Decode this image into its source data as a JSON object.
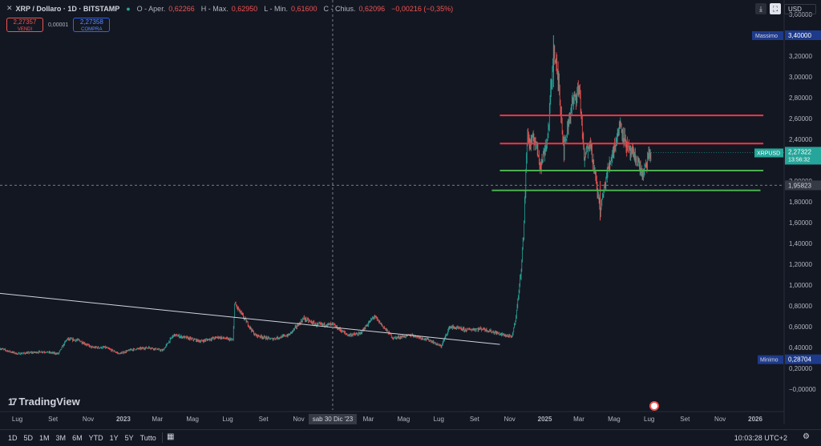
{
  "header": {
    "symbol": "XRP / Dollaro · 1D · BITSTAMP",
    "ohlc": [
      {
        "k": "O - Aper.",
        "v": "0,62266"
      },
      {
        "k": "H - Max.",
        "v": "0,62950"
      },
      {
        "k": "L - Min.",
        "v": "0,61600"
      },
      {
        "k": "C - Chius.",
        "v": "0,62096"
      },
      {
        "k": "",
        "v": "−0,00216 (−0,35%)"
      }
    ],
    "sell_price": "2,27357",
    "sell_label": "VENDI",
    "spread": "0,00001",
    "buy_price": "2,27358",
    "buy_label": "COMPRA",
    "currency": "USD"
  },
  "toolbar": {
    "timeframes": [
      "1D",
      "5D",
      "1M",
      "3M",
      "6M",
      "YTD",
      "1Y",
      "5Y",
      "Tutto"
    ],
    "clock": "10:03:28 UTC+2"
  },
  "brand": {
    "name": "TradingView"
  },
  "chart_data": {
    "type": "line",
    "y_axis": {
      "min": -0.2,
      "max": 3.6,
      "ticks": [
        "3,60000",
        "3,20000",
        "3,00000",
        "2,80000",
        "2,60000",
        "2,40000",
        "2,00000",
        "1,80000",
        "1,60000",
        "1,40000",
        "1,20000",
        "1,00000",
        "0,80000",
        "0,60000",
        "0,40000",
        "0,20000",
        "−0,00000"
      ],
      "tick_values": [
        3.6,
        3.2,
        3.0,
        2.8,
        2.6,
        2.4,
        2.0,
        1.8,
        1.6,
        1.4,
        1.2,
        1.0,
        0.8,
        0.6,
        0.4,
        0.2,
        0.0
      ]
    },
    "x_axis": {
      "start": "2022-06-01",
      "end": "2026-02-20",
      "labels": [
        {
          "d": "2022-07-01",
          "t": "Lug"
        },
        {
          "d": "2022-09-01",
          "t": "Set"
        },
        {
          "d": "2022-11-01",
          "t": "Nov"
        },
        {
          "d": "2023-01-01",
          "t": "2023",
          "bold": true
        },
        {
          "d": "2023-03-01",
          "t": "Mar"
        },
        {
          "d": "2023-05-01",
          "t": "Mag"
        },
        {
          "d": "2023-07-01",
          "t": "Lug"
        },
        {
          "d": "2023-09-01",
          "t": "Set"
        },
        {
          "d": "2023-11-01",
          "t": "Nov"
        },
        {
          "d": "2024-03-01",
          "t": "Mar"
        },
        {
          "d": "2024-05-01",
          "t": "Mag"
        },
        {
          "d": "2024-07-01",
          "t": "Lug"
        },
        {
          "d": "2024-09-01",
          "t": "Set"
        },
        {
          "d": "2024-11-01",
          "t": "Nov"
        },
        {
          "d": "2025-01-01",
          "t": "2025",
          "bold": true
        },
        {
          "d": "2025-03-01",
          "t": "Mar"
        },
        {
          "d": "2025-05-01",
          "t": "Mag"
        },
        {
          "d": "2025-07-01",
          "t": "Lug"
        },
        {
          "d": "2025-09-01",
          "t": "Set"
        },
        {
          "d": "2025-11-01",
          "t": "Nov"
        },
        {
          "d": "2026-01-01",
          "t": "2026",
          "bold": true
        }
      ]
    },
    "series": [
      {
        "name": "XRPUSD",
        "points": [
          [
            "2022-06-01",
            0.39
          ],
          [
            "2022-07-01",
            0.34
          ],
          [
            "2022-08-15",
            0.36
          ],
          [
            "2022-09-10",
            0.34
          ],
          [
            "2022-09-25",
            0.48
          ],
          [
            "2022-10-15",
            0.47
          ],
          [
            "2022-11-08",
            0.4
          ],
          [
            "2022-12-01",
            0.4
          ],
          [
            "2022-12-25",
            0.34
          ],
          [
            "2023-01-15",
            0.38
          ],
          [
            "2023-02-15",
            0.4
          ],
          [
            "2023-03-10",
            0.37
          ],
          [
            "2023-03-29",
            0.52
          ],
          [
            "2023-04-15",
            0.5
          ],
          [
            "2023-05-15",
            0.46
          ],
          [
            "2023-06-15",
            0.5
          ],
          [
            "2023-07-10",
            0.47
          ],
          [
            "2023-07-13",
            0.82
          ],
          [
            "2023-07-25",
            0.72
          ],
          [
            "2023-08-17",
            0.52
          ],
          [
            "2023-09-15",
            0.48
          ],
          [
            "2023-10-15",
            0.52
          ],
          [
            "2023-11-10",
            0.68
          ],
          [
            "2023-12-01",
            0.62
          ],
          [
            "2023-12-30",
            0.62
          ],
          [
            "2024-01-25",
            0.52
          ],
          [
            "2024-02-15",
            0.53
          ],
          [
            "2024-03-11",
            0.7
          ],
          [
            "2024-04-13",
            0.49
          ],
          [
            "2024-05-15",
            0.52
          ],
          [
            "2024-06-15",
            0.47
          ],
          [
            "2024-07-05",
            0.41
          ],
          [
            "2024-07-20",
            0.6
          ],
          [
            "2024-08-15",
            0.57
          ],
          [
            "2024-09-15",
            0.58
          ],
          [
            "2024-10-15",
            0.53
          ],
          [
            "2024-11-05",
            0.5
          ],
          [
            "2024-11-12",
            0.7
          ],
          [
            "2024-11-20",
            1.1
          ],
          [
            "2024-11-25",
            1.48
          ],
          [
            "2024-12-02",
            2.5
          ],
          [
            "2024-12-05",
            2.35
          ],
          [
            "2024-12-15",
            2.4
          ],
          [
            "2024-12-25",
            2.15
          ],
          [
            "2025-01-06",
            2.42
          ],
          [
            "2025-01-16",
            3.25
          ],
          [
            "2025-01-25",
            2.95
          ],
          [
            "2025-02-03",
            2.3
          ],
          [
            "2025-02-15",
            2.7
          ],
          [
            "2025-03-02",
            2.9
          ],
          [
            "2025-03-10",
            2.2
          ],
          [
            "2025-03-20",
            2.4
          ],
          [
            "2025-04-07",
            1.72
          ],
          [
            "2025-04-20",
            2.1
          ],
          [
            "2025-05-12",
            2.55
          ],
          [
            "2025-05-25",
            2.3
          ],
          [
            "2025-06-10",
            2.2
          ],
          [
            "2025-06-20",
            2.05
          ],
          [
            "2025-07-01",
            2.25
          ],
          [
            "2025-07-04",
            2.27
          ]
        ]
      }
    ],
    "high_marker": {
      "label": "Massimo",
      "value": 3.4,
      "value_text": "3,40000"
    },
    "low_marker": {
      "label": "Minimo",
      "value": 0.28704,
      "value_text": "0,28704"
    },
    "last_price": {
      "label": "XRPUSD",
      "value": 2.27322,
      "value_text": "2,27322",
      "countdown": "13:56:32"
    },
    "crosshair": {
      "date": "2023-12-30",
      "date_text": "sab 30 Dic '23",
      "value": 1.95823,
      "value_text": "1,95823"
    },
    "drawings": {
      "trendline": {
        "from": [
          "2022-06-01",
          0.92
        ],
        "to": [
          "2024-10-15",
          0.43
        ],
        "color": "#d1d4dc"
      },
      "resistance": [
        {
          "from": "2024-10-15",
          "to": "2026-01-15",
          "value": 2.63,
          "color": "#f23645"
        },
        {
          "from": "2024-10-15",
          "to": "2026-01-15",
          "value": 2.36,
          "color": "#f23645"
        }
      ],
      "support": [
        {
          "from": "2024-10-15",
          "to": "2026-01-15",
          "value": 2.1,
          "color": "#4caf50"
        },
        {
          "from": "2024-10-01",
          "to": "2026-01-10",
          "value": 1.91,
          "color": "#4caf50"
        }
      ]
    }
  }
}
